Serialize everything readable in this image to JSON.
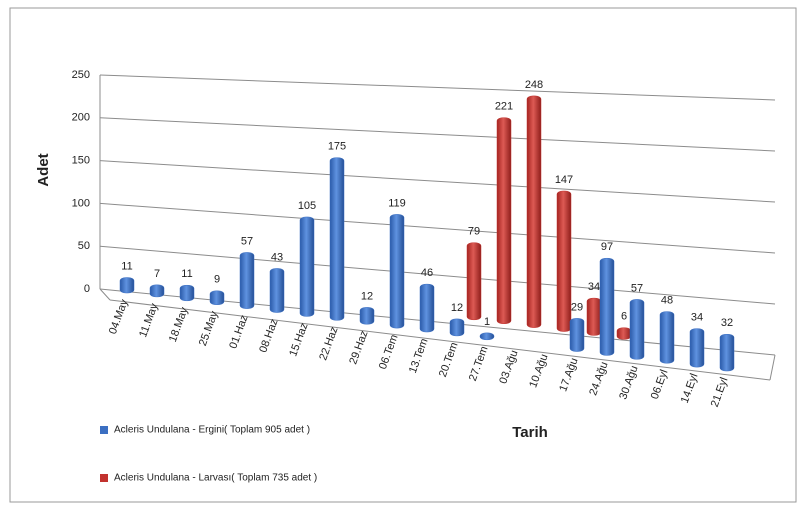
{
  "chart_data": {
    "type": "bar3d",
    "y_label": "Adet",
    "x_label": "Tarih",
    "categories": [
      "04.May",
      "11.May",
      "18.May",
      "25.May",
      "01.Haz",
      "08.Haz",
      "15.Haz",
      "22.Haz",
      "29.Haz",
      "06.Tem",
      "13.Tem",
      "20.Tem",
      "27.Tem",
      "03.Ağu",
      "10.Ağu",
      "17.Ağu",
      "24.Ağu",
      "30.Ağu",
      "06.Eyl",
      "14.Eyl",
      "21.Eyl"
    ],
    "series": [
      {
        "name": "Acleris Undulana - Ergini( Toplam  905 adet )",
        "color": "#3b6fc2",
        "values": [
          11,
          7,
          11,
          9,
          57,
          43,
          105,
          175,
          12,
          119,
          46,
          12,
          1,
          null,
          null,
          29,
          97,
          57,
          48,
          34,
          32
        ]
      },
      {
        "name": "Acleris Undulana - Larvası( Toplam  735 adet )",
        "color": "#c2322e",
        "values": [
          null,
          null,
          null,
          null,
          null,
          null,
          null,
          null,
          null,
          null,
          null,
          null,
          79,
          221,
          248,
          147,
          34,
          6,
          null,
          null,
          null
        ]
      }
    ],
    "ylim": [
      0,
      250
    ],
    "yticks": [
      0,
      50,
      100,
      150,
      200,
      250
    ],
    "grid": true
  }
}
